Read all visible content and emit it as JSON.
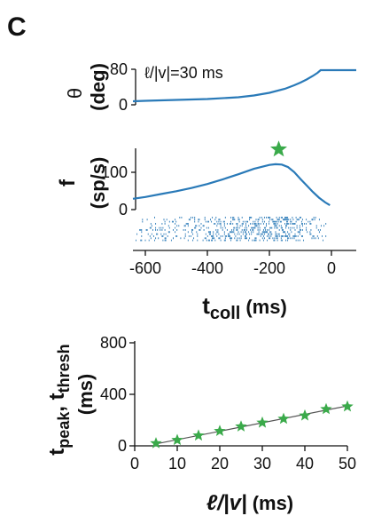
{
  "panel_label": "C",
  "colors": {
    "curve": "#2a7ab8",
    "raster": "#2a7ab8",
    "star": "#3aaa4a",
    "axis": "#111111",
    "fit_line": "#555555"
  },
  "chart_data": [
    {
      "id": "theta",
      "type": "line",
      "ylabel_symbol": "θ",
      "ylabel_unit": "(deg)",
      "annotation": "ℓ/|v|=30 ms",
      "yticks": [
        "0",
        "80"
      ],
      "ylim": [
        0,
        80
      ],
      "xlim": [
        -640,
        80
      ],
      "grid": false,
      "series": [
        {
          "x": [
            -640,
            -600,
            -500,
            -400,
            -300,
            -250,
            -200,
            -150,
            -120,
            -100,
            -80,
            -60,
            -45,
            -35,
            80
          ],
          "values": [
            8,
            9,
            11,
            13,
            17,
            21,
            27,
            36,
            44,
            50,
            57,
            65,
            72,
            78,
            78
          ]
        }
      ]
    },
    {
      "id": "rate",
      "type": "line",
      "ylabel_symbol": "f",
      "ylabel_unit": "(sp/s)",
      "yticks": [
        "0",
        "100"
      ],
      "ylim": [
        0,
        170
      ],
      "xlim": [
        -640,
        80
      ],
      "grid": false,
      "series": [
        {
          "x": [
            -640,
            -600,
            -550,
            -500,
            -450,
            -400,
            -350,
            -300,
            -250,
            -200,
            -180,
            -160,
            -140,
            -120,
            -100,
            -80,
            -60,
            -40,
            -20,
            -5
          ],
          "values": [
            30,
            35,
            43,
            51,
            60,
            71,
            84,
            98,
            113,
            124,
            126,
            125,
            118,
            104,
            85,
            67,
            49,
            33,
            20,
            12
          ]
        }
      ],
      "peak_marker": {
        "x": -170,
        "y": 167
      }
    },
    {
      "id": "raster",
      "type": "scatter",
      "description_x": "spike times",
      "xlim": [
        -640,
        80
      ],
      "trials": 12,
      "span": [
        -630,
        -15
      ]
    },
    {
      "id": "rate-xaxis",
      "xticks": [
        "-600",
        "-400",
        "-200",
        "0"
      ],
      "xtick_values": [
        -600,
        -400,
        -200,
        0
      ],
      "xlabel_main": "t",
      "xlabel_sub": "coll",
      "xlabel_unit": "(ms)"
    },
    {
      "id": "tpeak",
      "type": "scatter",
      "ylabel_main": "t",
      "ylabel_sub1": "peak",
      "ylabel_sep": ", t",
      "ylabel_sub2": "thresh",
      "ylabel_unit": "(ms)",
      "xlabel_main": "ℓ/|v|",
      "xlabel_unit": "(ms)",
      "xticks": [
        "0",
        "10",
        "20",
        "30",
        "40",
        "50"
      ],
      "xtick_values": [
        0,
        10,
        20,
        30,
        40,
        50
      ],
      "yticks": [
        "0",
        "400",
        "800"
      ],
      "ytick_values": [
        0,
        400,
        800
      ],
      "xlim": [
        0,
        50
      ],
      "ylim": [
        0,
        800
      ],
      "grid": false,
      "x": [
        5,
        10,
        15,
        20,
        25,
        30,
        35,
        40,
        45,
        50
      ],
      "values": [
        20,
        45,
        80,
        115,
        150,
        180,
        210,
        235,
        285,
        305
      ],
      "fit_line": {
        "x": [
          5,
          50
        ],
        "y": [
          15,
          310
        ]
      }
    }
  ]
}
